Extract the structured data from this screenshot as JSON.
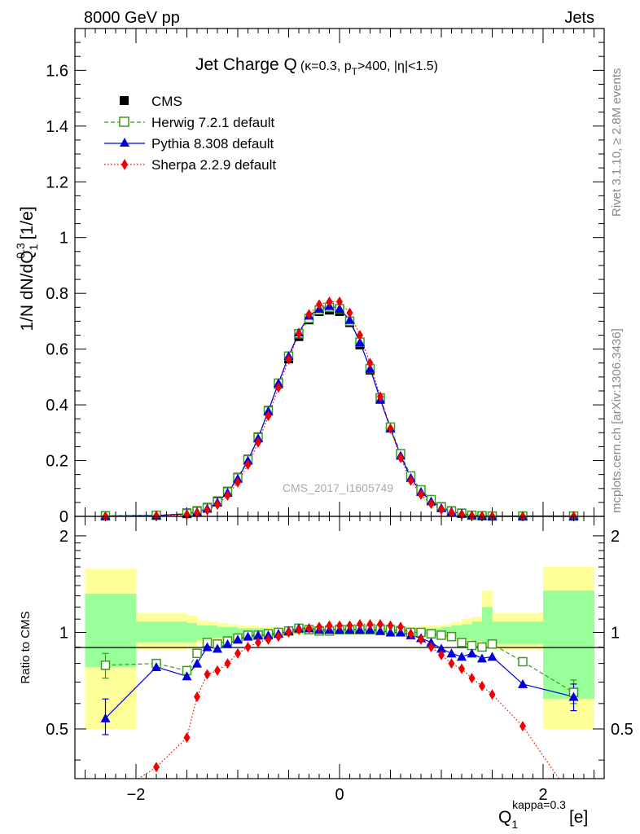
{
  "header": {
    "left": "8000 GeV pp",
    "right": "Jets"
  },
  "side_labels": {
    "rivet": "Rivet 3.1.10, ≥ 2.8M events",
    "mcplots": "mcplots.cern.ch [arXiv:1306.3436]"
  },
  "watermark": "CMS_2017_I1605749",
  "plot_title": {
    "main": "Jet Charge Q",
    "params_open": "(",
    "kappa": "κ=0.3, p",
    "pt_sub": "T",
    "cut": ">400, |η|<1.5)"
  },
  "colors": {
    "cms": "#000000",
    "herwig": "#3a9a1f",
    "pythia": "#0000dd",
    "sherpa": "#ee0000",
    "band_outer": "#ffff99",
    "band_inner": "#99ff99"
  },
  "chart_data": [
    {
      "type": "scatter",
      "panel": "main",
      "ylabel": {
        "lhs": "1/N dN/dQ",
        "sub": "1",
        "sup": "0.3",
        "unit": "[1/e]"
      },
      "xlim": [
        -2.6,
        2.6
      ],
      "ylim": [
        0,
        1.75
      ],
      "yticks": [
        "0",
        "0.2",
        "0.4",
        "0.6",
        "0.8",
        "1",
        "1.2",
        "1.4",
        "1.6"
      ],
      "legend_position": "top-left",
      "x": [
        -2.3,
        -1.8,
        -1.5,
        -1.4,
        -1.3,
        -1.2,
        -1.1,
        -1.0,
        -0.9,
        -0.8,
        -0.7,
        -0.6,
        -0.5,
        -0.4,
        -0.3,
        -0.2,
        -0.1,
        0.0,
        0.1,
        0.2,
        0.3,
        0.4,
        0.5,
        0.6,
        0.7,
        0.8,
        0.9,
        1.0,
        1.1,
        1.2,
        1.3,
        1.4,
        1.5,
        1.8,
        2.3
      ],
      "series": [
        {
          "name": "CMS",
          "marker": "square-filled",
          "values": [
            0.002,
            0.004,
            0.012,
            0.02,
            0.032,
            0.055,
            0.09,
            0.14,
            0.205,
            0.285,
            0.38,
            0.475,
            0.565,
            0.645,
            0.705,
            0.735,
            0.74,
            0.735,
            0.695,
            0.615,
            0.525,
            0.42,
            0.32,
            0.225,
            0.145,
            0.095,
            0.06,
            0.035,
            0.02,
            0.012,
            0.004,
            0.002,
            0.001,
            0.001,
            0.001
          ]
        },
        {
          "name": "Herwig 7.2.1 default",
          "marker": "square-open",
          "line": "dashed",
          "values": [
            0.002,
            0.004,
            0.01,
            0.018,
            0.03,
            0.052,
            0.088,
            0.138,
            0.203,
            0.283,
            0.378,
            0.478,
            0.575,
            0.655,
            0.71,
            0.74,
            0.75,
            0.745,
            0.7,
            0.625,
            0.53,
            0.425,
            0.32,
            0.225,
            0.145,
            0.095,
            0.06,
            0.034,
            0.019,
            0.011,
            0.004,
            0.002,
            0.001,
            0.001,
            0.001
          ]
        },
        {
          "name": "Pythia 8.308 default",
          "marker": "triangle-filled",
          "line": "solid",
          "values": [
            0.001,
            0.003,
            0.009,
            0.016,
            0.028,
            0.05,
            0.085,
            0.135,
            0.2,
            0.28,
            0.378,
            0.478,
            0.575,
            0.66,
            0.72,
            0.745,
            0.755,
            0.745,
            0.705,
            0.625,
            0.53,
            0.42,
            0.315,
            0.218,
            0.138,
            0.088,
            0.054,
            0.03,
            0.017,
            0.01,
            0.004,
            0.002,
            0.001,
            0.001,
            0.001
          ]
        },
        {
          "name": "Sherpa 2.2.9 default",
          "marker": "diamond-filled",
          "line": "dotted",
          "values": [
            0.0,
            0.002,
            0.006,
            0.012,
            0.022,
            0.042,
            0.075,
            0.122,
            0.185,
            0.265,
            0.36,
            0.462,
            0.563,
            0.655,
            0.725,
            0.76,
            0.77,
            0.77,
            0.73,
            0.65,
            0.55,
            0.43,
            0.315,
            0.21,
            0.128,
            0.078,
            0.045,
            0.024,
            0.012,
            0.006,
            0.002,
            0.001,
            0.0,
            0.0,
            0.0
          ]
        }
      ]
    },
    {
      "type": "line",
      "panel": "ratio",
      "ylabel": "Ratio to CMS",
      "xlabel": {
        "lhs": "Q",
        "sub": "1",
        "sup": "kappa=0.3",
        "unit": "[e]"
      },
      "xlim": [
        -2.6,
        2.6
      ],
      "ylim": [
        0.35,
        2.3
      ],
      "log_y": true,
      "yticks": [
        "0.5",
        "1",
        "2"
      ],
      "xticks": [
        "−2",
        "0",
        "2"
      ],
      "x": [
        -2.3,
        -1.8,
        -1.5,
        -1.4,
        -1.3,
        -1.2,
        -1.1,
        -1.0,
        -0.9,
        -0.8,
        -0.7,
        -0.6,
        -0.5,
        -0.4,
        -0.3,
        -0.2,
        -0.1,
        0.0,
        0.1,
        0.2,
        0.3,
        0.4,
        0.5,
        0.6,
        0.7,
        0.8,
        0.9,
        1.0,
        1.1,
        1.2,
        1.3,
        1.4,
        1.5,
        1.8,
        2.3
      ],
      "series": [
        {
          "name": "Herwig 7.2.1 default",
          "values": [
            0.79,
            0.8,
            0.76,
            0.86,
            0.93,
            0.92,
            0.94,
            0.96,
            0.98,
            0.98,
            0.99,
            1.0,
            1.01,
            1.03,
            1.02,
            1.01,
            1.01,
            1.02,
            1.02,
            1.02,
            1.02,
            1.02,
            1.02,
            1.01,
            1.0,
            1.0,
            0.99,
            0.98,
            0.97,
            0.93,
            0.91,
            0.9,
            0.92,
            0.81,
            0.65
          ]
        },
        {
          "name": "Pythia 8.308 default",
          "values": [
            0.54,
            0.78,
            0.73,
            0.8,
            0.9,
            0.89,
            0.92,
            0.95,
            0.97,
            0.98,
            0.98,
            0.99,
            1.01,
            1.03,
            1.03,
            1.02,
            1.02,
            1.02,
            1.02,
            1.02,
            1.02,
            1.01,
            1.0,
            1.0,
            0.98,
            0.96,
            0.93,
            0.89,
            0.86,
            0.84,
            0.86,
            0.83,
            0.84,
            0.69,
            0.63
          ]
        },
        {
          "name": "Sherpa 2.2.9 default",
          "values": [
            0.3,
            0.38,
            0.47,
            0.63,
            0.74,
            0.76,
            0.8,
            0.86,
            0.9,
            0.93,
            0.95,
            0.97,
            1.0,
            1.02,
            1.03,
            1.04,
            1.05,
            1.05,
            1.05,
            1.06,
            1.06,
            1.06,
            1.05,
            1.04,
            0.99,
            0.95,
            0.9,
            0.85,
            0.8,
            0.77,
            0.72,
            0.68,
            0.64,
            0.51,
            0.3
          ]
        }
      ],
      "uncertainty_bands": {
        "edges": [
          -2.5,
          -2.0,
          -1.5,
          -1.4,
          -1.3,
          -1.2,
          -1.1,
          -1.0,
          -0.9,
          -0.8,
          -0.7,
          -0.6,
          -0.5,
          -0.4,
          -0.3,
          -0.2,
          -0.1,
          0.0,
          0.1,
          0.2,
          0.3,
          0.4,
          0.5,
          0.6,
          0.7,
          0.8,
          0.9,
          1.0,
          1.1,
          1.2,
          1.3,
          1.4,
          1.5,
          1.6,
          2.0,
          2.5
        ],
        "outer_lo": [
          0.5,
          0.88,
          0.89,
          0.92,
          0.93,
          0.94,
          0.95,
          0.96,
          0.96,
          0.97,
          0.97,
          0.98,
          0.98,
          0.98,
          0.98,
          0.98,
          0.98,
          0.98,
          0.98,
          0.98,
          0.98,
          0.98,
          0.98,
          0.97,
          0.97,
          0.96,
          0.96,
          0.95,
          0.94,
          0.93,
          0.92,
          0.9,
          0.88,
          0.88,
          0.5
        ],
        "outer_hi": [
          1.58,
          1.15,
          1.13,
          1.09,
          1.08,
          1.07,
          1.06,
          1.05,
          1.05,
          1.04,
          1.04,
          1.03,
          1.03,
          1.03,
          1.03,
          1.03,
          1.03,
          1.03,
          1.03,
          1.03,
          1.03,
          1.03,
          1.03,
          1.04,
          1.04,
          1.05,
          1.05,
          1.06,
          1.08,
          1.1,
          1.12,
          1.35,
          1.15,
          1.15,
          1.6
        ],
        "inner_lo": [
          0.78,
          0.93,
          0.93,
          0.95,
          0.96,
          0.96,
          0.97,
          0.97,
          0.97,
          0.98,
          0.98,
          0.98,
          0.99,
          0.99,
          0.99,
          0.99,
          0.99,
          0.99,
          0.99,
          0.99,
          0.99,
          0.99,
          0.99,
          0.98,
          0.98,
          0.98,
          0.97,
          0.97,
          0.96,
          0.95,
          0.94,
          0.92,
          0.92,
          0.92,
          0.62
        ],
        "inner_hi": [
          1.32,
          1.08,
          1.07,
          1.05,
          1.05,
          1.04,
          1.04,
          1.03,
          1.03,
          1.03,
          1.02,
          1.02,
          1.02,
          1.02,
          1.02,
          1.02,
          1.02,
          1.02,
          1.02,
          1.02,
          1.02,
          1.02,
          1.02,
          1.02,
          1.03,
          1.03,
          1.03,
          1.04,
          1.05,
          1.06,
          1.08,
          1.2,
          1.08,
          1.08,
          1.35
        ]
      }
    }
  ]
}
